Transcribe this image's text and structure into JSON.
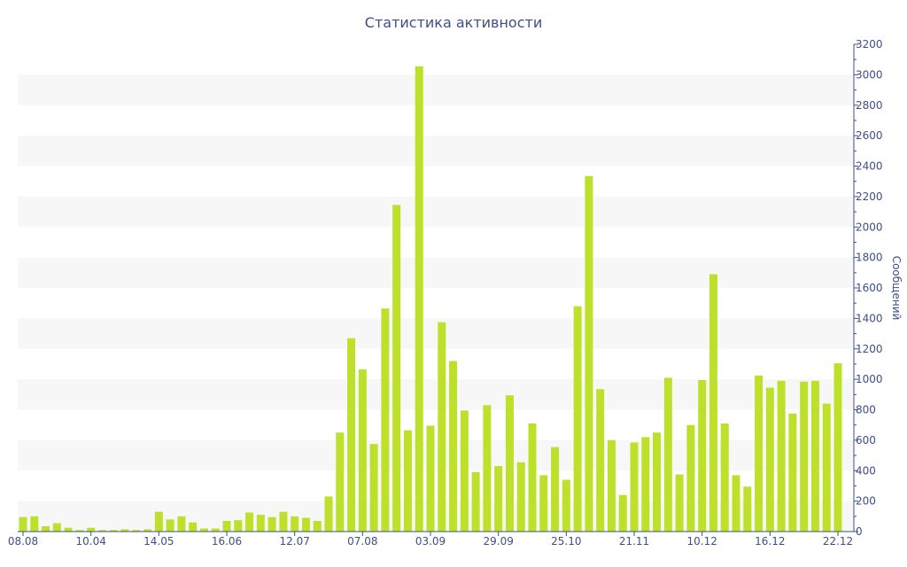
{
  "chart_data": {
    "type": "bar",
    "title": "Статистика активности",
    "ylabel": "Сообщений",
    "xlabel": "",
    "ylim": [
      0,
      3200
    ],
    "y_ticks": [
      0,
      200,
      400,
      600,
      800,
      1000,
      1200,
      1400,
      1600,
      1800,
      2000,
      2200,
      2400,
      2600,
      2800,
      3000,
      3200
    ],
    "y_axis_side": "right",
    "x_tick_labels": [
      {
        "index": 0,
        "label": "08.08"
      },
      {
        "index": 6,
        "label": "10.04"
      },
      {
        "index": 12,
        "label": "14.05"
      },
      {
        "index": 18,
        "label": "16.06"
      },
      {
        "index": 24,
        "label": "12.07"
      },
      {
        "index": 30,
        "label": "07.08"
      },
      {
        "index": 36,
        "label": "03.09"
      },
      {
        "index": 42,
        "label": "29.09"
      },
      {
        "index": 48,
        "label": "25.10"
      },
      {
        "index": 54,
        "label": "21.11"
      },
      {
        "index": 60,
        "label": "10.12"
      },
      {
        "index": 66,
        "label": "16.12"
      },
      {
        "index": 72,
        "label": "22.12"
      }
    ],
    "values": [
      95,
      100,
      35,
      55,
      25,
      10,
      25,
      10,
      10,
      15,
      10,
      15,
      130,
      80,
      100,
      60,
      20,
      20,
      70,
      75,
      125,
      110,
      95,
      130,
      100,
      90,
      70,
      230,
      650,
      1270,
      1065,
      575,
      1465,
      2145,
      665,
      3055,
      695,
      1375,
      1120,
      795,
      390,
      830,
      430,
      895,
      455,
      710,
      370,
      555,
      340,
      1480,
      2335,
      935,
      600,
      240,
      585,
      620,
      650,
      1010,
      375,
      700,
      995,
      1690,
      710,
      370,
      295,
      1025,
      945,
      990,
      775,
      985,
      990,
      840,
      1105
    ],
    "grid": true,
    "bar_color": "#bde02a",
    "band_color": "#f7f7f7",
    "text_color": "#3d4f8a"
  }
}
